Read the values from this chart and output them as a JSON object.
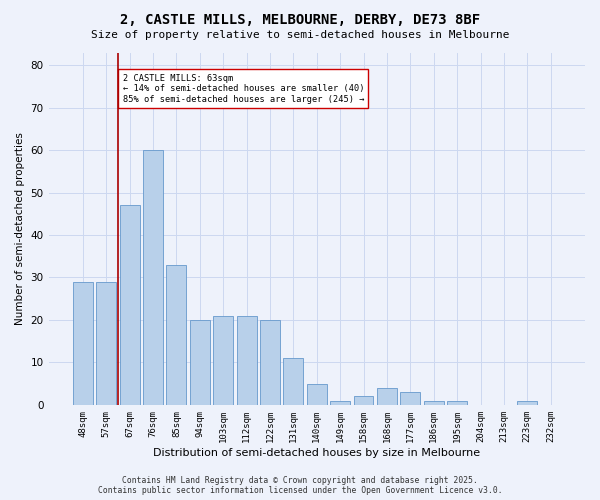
{
  "title": "2, CASTLE MILLS, MELBOURNE, DERBY, DE73 8BF",
  "subtitle": "Size of property relative to semi-detached houses in Melbourne",
  "xlabel": "Distribution of semi-detached houses by size in Melbourne",
  "ylabel": "Number of semi-detached properties",
  "bar_labels": [
    "48sqm",
    "57sqm",
    "67sqm",
    "76sqm",
    "85sqm",
    "94sqm",
    "103sqm",
    "112sqm",
    "122sqm",
    "131sqm",
    "140sqm",
    "149sqm",
    "158sqm",
    "168sqm",
    "177sqm",
    "186sqm",
    "195sqm",
    "204sqm",
    "213sqm",
    "223sqm",
    "232sqm"
  ],
  "bar_values": [
    29,
    29,
    47,
    60,
    33,
    20,
    21,
    21,
    20,
    11,
    5,
    1,
    2,
    4,
    3,
    1,
    1,
    0,
    0,
    1,
    0
  ],
  "bar_color": "#b8d0ea",
  "bar_edge_color": "#6699cc",
  "grid_color": "#ccd8f0",
  "background_color": "#eef2fb",
  "vline_color": "#aa0000",
  "vline_x_bar_index": 1.5,
  "annotation_title": "2 CASTLE MILLS: 63sqm",
  "annotation_line1": "← 14% of semi-detached houses are smaller (40)",
  "annotation_line2": "85% of semi-detached houses are larger (245) →",
  "annotation_box_color": "#ffffff",
  "annotation_box_edge": "#cc0000",
  "ylim": [
    0,
    83
  ],
  "yticks": [
    0,
    10,
    20,
    30,
    40,
    50,
    60,
    70,
    80
  ],
  "footer_line1": "Contains HM Land Registry data © Crown copyright and database right 2025.",
  "footer_line2": "Contains public sector information licensed under the Open Government Licence v3.0."
}
